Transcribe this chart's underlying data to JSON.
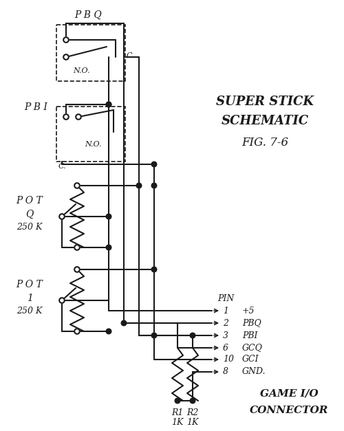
{
  "bg": "#ffffff",
  "lc": "#1a1a1a",
  "figsize": [
    5.0,
    6.27
  ],
  "dpi": 100,
  "title1": "SUPER STICK",
  "title2": "SCHEMATIC",
  "title3": "FIG. 7-6",
  "pbq_lbl": "P B Q",
  "pbi_lbl": "P B I",
  "potq_l1": "P O T",
  "potq_l2": "Q",
  "potq_l3": "250 K",
  "pot1_l1": "P O T",
  "pot1_l2": "1",
  "pot1_l3": "250 K",
  "pin_hdr": "PIN",
  "pins": [
    "1",
    "2",
    "3",
    "6",
    "10",
    "8"
  ],
  "sigs": [
    "+5",
    "PBQ",
    "PBI",
    "GCQ",
    "GCI",
    "GND."
  ],
  "r1a": "R1",
  "r1b": "1K",
  "r2a": "R2",
  "r2b": "1K",
  "gi1": "GAME I/O",
  "gi2": "CONNECTOR",
  "no_lbl": "N.O.",
  "c_lbl": "C."
}
